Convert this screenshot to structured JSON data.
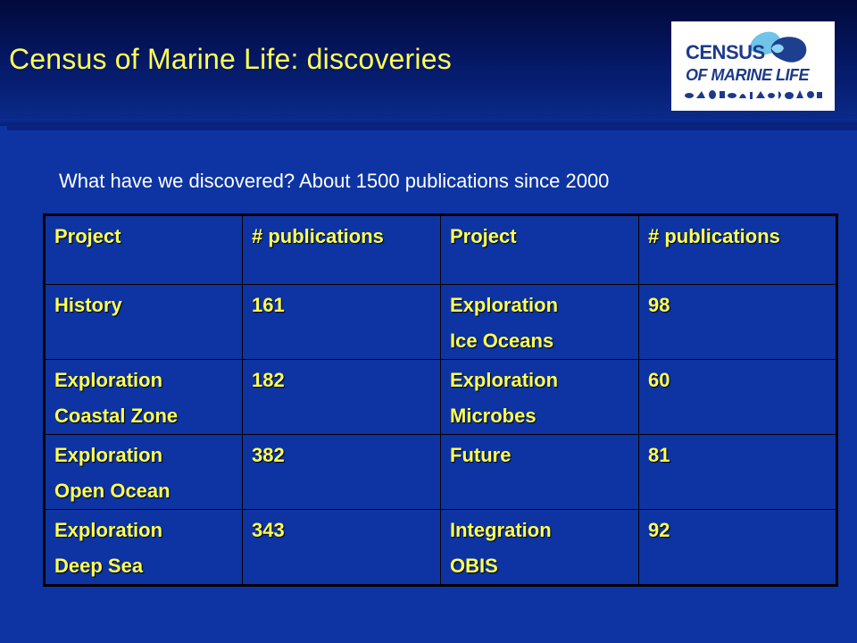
{
  "slide": {
    "title": "Census of Marine Life: discoveries",
    "subtitle": "What have we discovered? About 1500 publications since 2000"
  },
  "logo": {
    "line1": "CENSUS",
    "line2": "OF MARINE LIFE",
    "colors": {
      "text": "#1d3a8a",
      "blob_light": "#6fc4e8",
      "blob_dark": "#1e3f8f"
    }
  },
  "table": {
    "headers": [
      "Project",
      "# publications",
      "Project",
      "# publications"
    ],
    "rows": [
      {
        "project_a": [
          "History"
        ],
        "count_a": "161",
        "project_b": [
          "Exploration",
          "Ice Oceans"
        ],
        "count_b": "98"
      },
      {
        "project_a": [
          "Exploration",
          "Coastal Zone"
        ],
        "count_a": "182",
        "project_b": [
          "Exploration",
          "Microbes"
        ],
        "count_b": "60"
      },
      {
        "project_a": [
          "Exploration",
          "Open Ocean"
        ],
        "count_a": "382",
        "project_b": [
          "Future"
        ],
        "count_b": "81"
      },
      {
        "project_a": [
          "Exploration",
          "Deep Sea"
        ],
        "count_a": "343",
        "project_b": [
          "Integration",
          "OBIS"
        ],
        "count_b": "92"
      }
    ]
  },
  "colors": {
    "background": "#0d34a2",
    "title": "#ffff55",
    "table_text": "#ffff55",
    "subtitle": "#ffffff"
  }
}
